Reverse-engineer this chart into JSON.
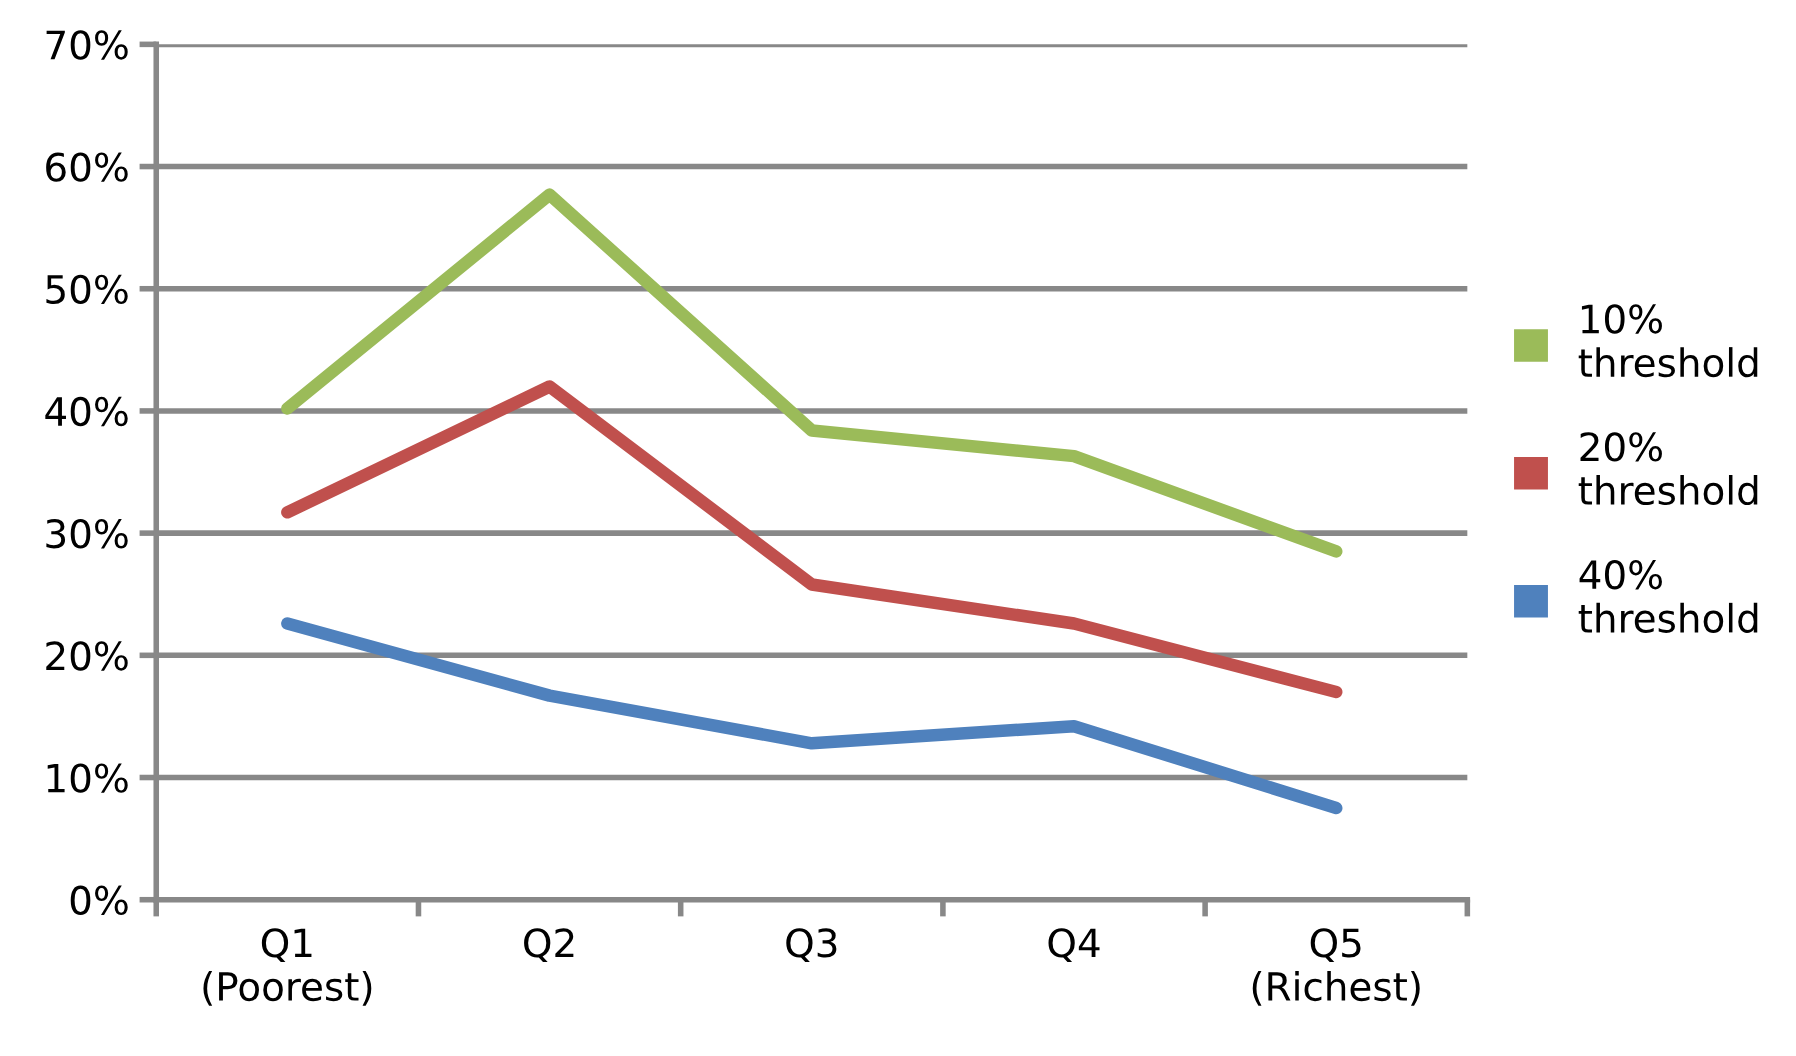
{
  "chart_data": {
    "type": "line",
    "categories": [
      "Q1\n(Poorest)",
      "Q2",
      "Q3",
      "Q4",
      "Q5\n(Richest)"
    ],
    "series": [
      {
        "name": "10%\nthreshold",
        "color": "#9bbb59",
        "values": [
          40.2,
          57.7,
          38.4,
          36.3,
          28.5
        ]
      },
      {
        "name": "20%\nthreshold",
        "color": "#c0504d",
        "values": [
          31.7,
          42.0,
          25.8,
          22.6,
          17.0
        ]
      },
      {
        "name": "40%\nthreshold",
        "color": "#4f81bd",
        "values": [
          22.6,
          16.7,
          12.8,
          14.2,
          7.5
        ]
      }
    ],
    "ylim": [
      0,
      70
    ],
    "yticks": [
      {
        "value": 0,
        "label": "0%"
      },
      {
        "value": 10,
        "label": "10%"
      },
      {
        "value": 20,
        "label": "20%"
      },
      {
        "value": 30,
        "label": "30%"
      },
      {
        "value": 40,
        "label": "40%"
      },
      {
        "value": 50,
        "label": "50%"
      },
      {
        "value": 60,
        "label": "60%"
      },
      {
        "value": 70,
        "label": "70%"
      }
    ],
    "grid": "y",
    "legend": "right",
    "marker": "none",
    "line_style": "solid"
  }
}
